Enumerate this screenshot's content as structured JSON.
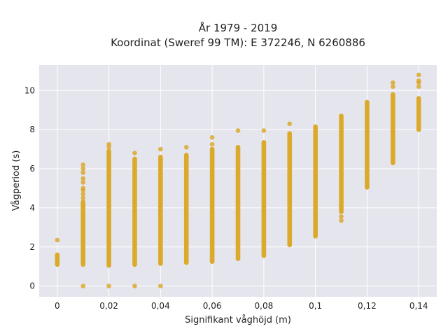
{
  "chart_data": {
    "type": "scatter",
    "title_line1": "År 1979 - 2019",
    "title_line2": "Koordinat (Sweref 99 TM): E 372246, N 6260886",
    "xlabel": "Signifikant våghöjd (m)",
    "ylabel": "Vågperiod (s)",
    "xlim": [
      -0.007,
      0.147
    ],
    "ylim": [
      -0.55,
      11.3
    ],
    "grid": true,
    "marker_color": "#DAA520",
    "background_color": "#E5E5EE",
    "grid_color": "#ffffff",
    "x_ticks": [
      0,
      0.02,
      0.04,
      0.06,
      0.08,
      0.1,
      0.12,
      0.14
    ],
    "x_tick_labels": [
      "0",
      "0,02",
      "0,04",
      "0,06",
      "0,08",
      "0,1",
      "0,12",
      "0,14"
    ],
    "y_ticks": [
      0,
      2,
      4,
      6,
      8,
      10
    ],
    "y_tick_labels": [
      "0",
      "2",
      "4",
      "6",
      "8",
      "10"
    ],
    "columns": [
      {
        "x": 0.0,
        "ranges": [
          [
            1.1,
            1.6
          ]
        ],
        "points": [
          2.35
        ]
      },
      {
        "x": 0.01,
        "ranges": [
          [
            1.1,
            4.3
          ]
        ],
        "points": [
          0.0,
          4.5,
          4.7,
          4.9,
          5.0,
          5.3,
          5.5,
          5.8,
          6.0,
          6.2
        ]
      },
      {
        "x": 0.02,
        "ranges": [
          [
            1.05,
            6.9
          ]
        ],
        "points": [
          0.0,
          7.1,
          7.25
        ]
      },
      {
        "x": 0.03,
        "ranges": [
          [
            1.1,
            6.5
          ]
        ],
        "points": [
          0.0,
          6.8
        ]
      },
      {
        "x": 0.04,
        "ranges": [
          [
            1.15,
            6.6
          ]
        ],
        "points": [
          0.0,
          7.0
        ]
      },
      {
        "x": 0.05,
        "ranges": [
          [
            1.2,
            6.7
          ]
        ],
        "points": [
          7.1
        ]
      },
      {
        "x": 0.06,
        "ranges": [
          [
            1.25,
            7.0
          ]
        ],
        "points": [
          7.25,
          7.6
        ]
      },
      {
        "x": 0.07,
        "ranges": [
          [
            1.4,
            7.1
          ]
        ],
        "points": [
          7.95
        ]
      },
      {
        "x": 0.08,
        "ranges": [
          [
            1.55,
            7.35
          ]
        ],
        "points": [
          7.95
        ]
      },
      {
        "x": 0.09,
        "ranges": [
          [
            2.1,
            7.8
          ]
        ],
        "points": [
          8.3
        ]
      },
      {
        "x": 0.1,
        "ranges": [
          [
            2.55,
            8.15
          ]
        ],
        "points": []
      },
      {
        "x": 0.11,
        "ranges": [
          [
            3.8,
            8.7
          ]
        ],
        "points": [
          3.35,
          3.55
        ]
      },
      {
        "x": 0.12,
        "ranges": [
          [
            5.05,
            9.4
          ]
        ],
        "points": []
      },
      {
        "x": 0.13,
        "ranges": [
          [
            6.3,
            9.8
          ]
        ],
        "points": [
          10.2,
          10.4
        ]
      },
      {
        "x": 0.14,
        "ranges": [
          [
            8.0,
            9.6
          ]
        ],
        "points": [
          10.2,
          10.4,
          10.5,
          10.8
        ]
      }
    ]
  }
}
